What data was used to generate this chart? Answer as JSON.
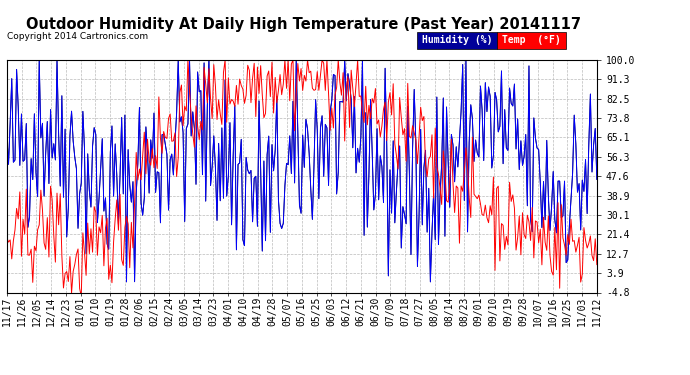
{
  "title": "Outdoor Humidity At Daily High Temperature (Past Year) 20141117",
  "copyright": "Copyright 2014 Cartronics.com",
  "ylabel_right_ticks": [
    100.0,
    91.3,
    82.5,
    73.8,
    65.1,
    56.3,
    47.6,
    38.9,
    30.1,
    21.4,
    12.7,
    3.9,
    -4.8
  ],
  "ylim": [
    -4.8,
    100.0
  ],
  "xtick_labels": [
    "11/17",
    "11/26",
    "12/05",
    "12/14",
    "12/23",
    "01/01",
    "01/10",
    "01/19",
    "01/28",
    "02/06",
    "02/15",
    "02/24",
    "03/05",
    "03/14",
    "03/23",
    "04/01",
    "04/10",
    "04/19",
    "04/28",
    "05/07",
    "05/16",
    "05/25",
    "06/03",
    "06/12",
    "06/21",
    "06/30",
    "07/09",
    "07/18",
    "07/27",
    "08/05",
    "08/14",
    "08/23",
    "09/01",
    "09/10",
    "09/19",
    "09/28",
    "10/07",
    "10/16",
    "10/25",
    "11/03",
    "11/12"
  ],
  "humidity_color": "#0000ff",
  "temp_color": "#ff0000",
  "black_color": "#000000",
  "background_color": "#ffffff",
  "grid_color": "#bbbbbb",
  "legend_humidity_bg": "#000099",
  "legend_temp_bg": "#ff0000",
  "legend_text_color": "#ffffff",
  "title_fontsize": 10.5,
  "copyright_fontsize": 6.5,
  "tick_fontsize": 7,
  "legend_fontsize": 7,
  "n_points": 366
}
